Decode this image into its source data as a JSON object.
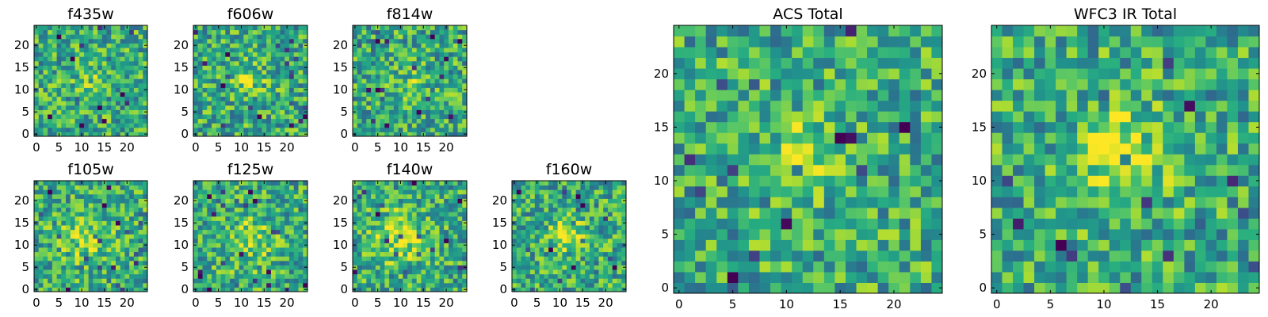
{
  "chart_data": [
    {
      "type": "heatmap",
      "title": "f435w",
      "x_ticks": [
        0,
        5,
        10,
        15,
        20
      ],
      "y_ticks": [
        0,
        5,
        10,
        15,
        20
      ],
      "xlim": [
        -0.5,
        24.5
      ],
      "ylim": [
        -0.5,
        24.5
      ],
      "grid_size": 25,
      "colormap": "viridis",
      "feature": {
        "cx": 12,
        "cy": 12,
        "amp": 0.12,
        "sigma": 2.5
      },
      "seed": 11
    },
    {
      "type": "heatmap",
      "title": "f606w",
      "x_ticks": [
        0,
        5,
        10,
        15,
        20
      ],
      "y_ticks": [
        0,
        5,
        10,
        15,
        20
      ],
      "xlim": [
        -0.5,
        24.5
      ],
      "ylim": [
        -0.5,
        24.5
      ],
      "grid_size": 25,
      "colormap": "viridis",
      "feature": {
        "cx": 11.5,
        "cy": 12.5,
        "amp": 0.25,
        "sigma": 2.2
      },
      "seed": 22
    },
    {
      "type": "heatmap",
      "title": "f814w",
      "x_ticks": [
        0,
        5,
        10,
        15,
        20
      ],
      "y_ticks": [
        0,
        5,
        10,
        15,
        20
      ],
      "xlim": [
        -0.5,
        24.5
      ],
      "ylim": [
        -0.5,
        24.5
      ],
      "grid_size": 25,
      "colormap": "viridis",
      "feature": {
        "cx": 12,
        "cy": 12,
        "amp": 0.12,
        "sigma": 2.5
      },
      "seed": 33
    },
    {
      "type": "heatmap",
      "title": "f105w",
      "x_ticks": [
        0,
        5,
        10,
        15,
        20
      ],
      "y_ticks": [
        0,
        5,
        10,
        15,
        20
      ],
      "xlim": [
        -0.5,
        24.5
      ],
      "ylim": [
        -0.5,
        24.5
      ],
      "grid_size": 25,
      "colormap": "viridis",
      "feature": {
        "cx": 11,
        "cy": 12,
        "amp": 0.2,
        "sigma": 4
      },
      "seed": 44
    },
    {
      "type": "heatmap",
      "title": "f125w",
      "x_ticks": [
        0,
        5,
        10,
        15,
        20
      ],
      "y_ticks": [
        0,
        5,
        10,
        15,
        20
      ],
      "xlim": [
        -0.5,
        24.5
      ],
      "ylim": [
        -0.5,
        24.5
      ],
      "grid_size": 25,
      "colormap": "viridis",
      "feature": {
        "cx": 12,
        "cy": 11,
        "amp": 0.2,
        "sigma": 4
      },
      "seed": 55
    },
    {
      "type": "heatmap",
      "title": "f140w",
      "x_ticks": [
        0,
        5,
        10,
        15,
        20
      ],
      "y_ticks": [
        0,
        5,
        10,
        15,
        20
      ],
      "xlim": [
        -0.5,
        24.5
      ],
      "ylim": [
        -0.5,
        24.5
      ],
      "grid_size": 25,
      "colormap": "viridis",
      "feature": {
        "cx": 10,
        "cy": 12,
        "amp": 0.25,
        "sigma": 4
      },
      "seed": 66
    },
    {
      "type": "heatmap",
      "title": "f160w",
      "x_ticks": [
        0,
        5,
        10,
        15,
        20
      ],
      "y_ticks": [
        0,
        5,
        10,
        15,
        20
      ],
      "xlim": [
        -0.5,
        24.5
      ],
      "ylim": [
        -0.5,
        24.5
      ],
      "grid_size": 25,
      "colormap": "viridis",
      "feature": {
        "cx": 11,
        "cy": 12.5,
        "amp": 0.3,
        "sigma": 2.5
      },
      "seed": 77
    },
    {
      "type": "heatmap",
      "title": "ACS Total",
      "x_ticks": [
        0,
        5,
        10,
        15,
        20
      ],
      "y_ticks": [
        0,
        5,
        10,
        15,
        20
      ],
      "xlim": [
        -0.5,
        24.5
      ],
      "ylim": [
        -0.5,
        24.5
      ],
      "grid_size": 25,
      "colormap": "viridis",
      "feature": {
        "cx": 12,
        "cy": 12.5,
        "amp": 0.3,
        "sigma": 2.2
      },
      "seed": 88
    },
    {
      "type": "heatmap",
      "title": "WFC3 IR Total",
      "x_ticks": [
        0,
        5,
        10,
        15,
        20
      ],
      "y_ticks": [
        0,
        5,
        10,
        15,
        20
      ],
      "xlim": [
        -0.5,
        24.5
      ],
      "ylim": [
        -0.5,
        24.5
      ],
      "grid_size": 25,
      "colormap": "viridis",
      "feature": {
        "cx": 11.5,
        "cy": 12.5,
        "amp": 0.35,
        "sigma": 3
      },
      "seed": 99
    }
  ]
}
